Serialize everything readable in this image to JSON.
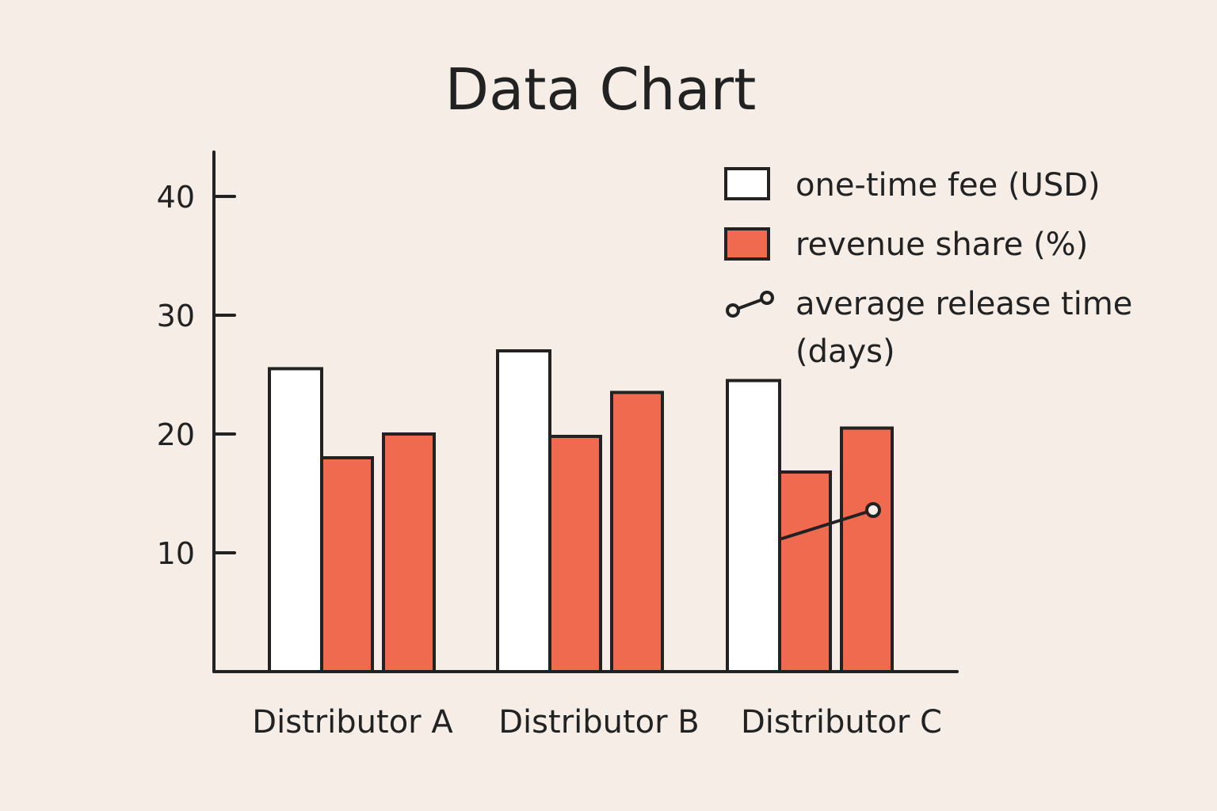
{
  "chart_data": {
    "type": "bar",
    "title": "Data Chart",
    "xlabel": "",
    "ylabel": "",
    "ylim": [
      0,
      43
    ],
    "yticks": [
      10,
      20,
      30,
      40
    ],
    "grid": false,
    "legend_position": "top-right",
    "categories": [
      "Distributor A",
      "Distributor B",
      "Distributor C"
    ],
    "series": [
      {
        "name": "one-time fee (USD)",
        "kind": "bar",
        "color": "#ffffff",
        "values": [
          25.5,
          27,
          24.5
        ]
      },
      {
        "name": "revenue share (%)",
        "kind": "bar",
        "color": "#f06a4f",
        "values": [
          18,
          19.8,
          16.8
        ]
      },
      {
        "name": "",
        "kind": "bar",
        "color": "#f06a4f",
        "values": [
          20,
          23.5,
          20.5
        ]
      },
      {
        "name": "average release time (days)",
        "kind": "line",
        "color": "#222222",
        "points": [
          {
            "category": "Distributor C",
            "value": 11.2
          },
          {
            "category": "Distributor C",
            "value": 13.6
          }
        ]
      }
    ]
  }
}
